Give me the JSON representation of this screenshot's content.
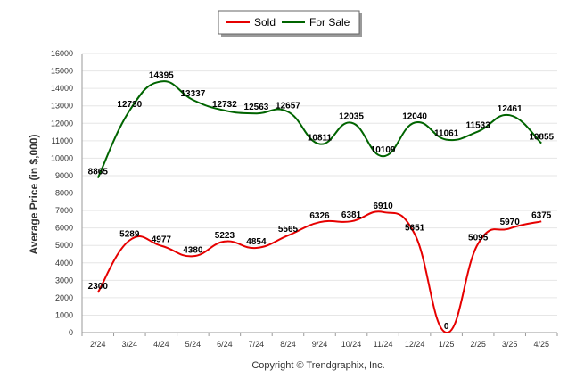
{
  "chart_data": {
    "type": "line",
    "title": "",
    "xlabel": "",
    "ylabel": "Average Price (in $,000)",
    "footer": "Copyright © Trendgraphix, Inc.",
    "ylim": [
      0,
      16000
    ],
    "yticks": [
      0,
      1000,
      2000,
      3000,
      4000,
      5000,
      6000,
      7000,
      8000,
      9000,
      10000,
      11000,
      12000,
      13000,
      14000,
      15000,
      16000
    ],
    "grid": true,
    "legend_position": "top-center",
    "categories": [
      "2/24",
      "3/24",
      "4/24",
      "5/24",
      "6/24",
      "7/24",
      "8/24",
      "9/24",
      "10/24",
      "11/24",
      "12/24",
      "1/25",
      "2/25",
      "3/25",
      "4/25"
    ],
    "series": [
      {
        "name": "Sold",
        "color": "#e60000",
        "values": [
          2300,
          5289,
          4977,
          4380,
          5223,
          4854,
          5565,
          6326,
          6381,
          6910,
          5651,
          0,
          5095,
          5970,
          6375
        ]
      },
      {
        "name": "For Sale",
        "color": "#006400",
        "values": [
          8865,
          12730,
          14395,
          13337,
          12732,
          12563,
          12657,
          10811,
          12035,
          10109,
          12040,
          11061,
          11533,
          12461,
          10855
        ]
      }
    ]
  }
}
